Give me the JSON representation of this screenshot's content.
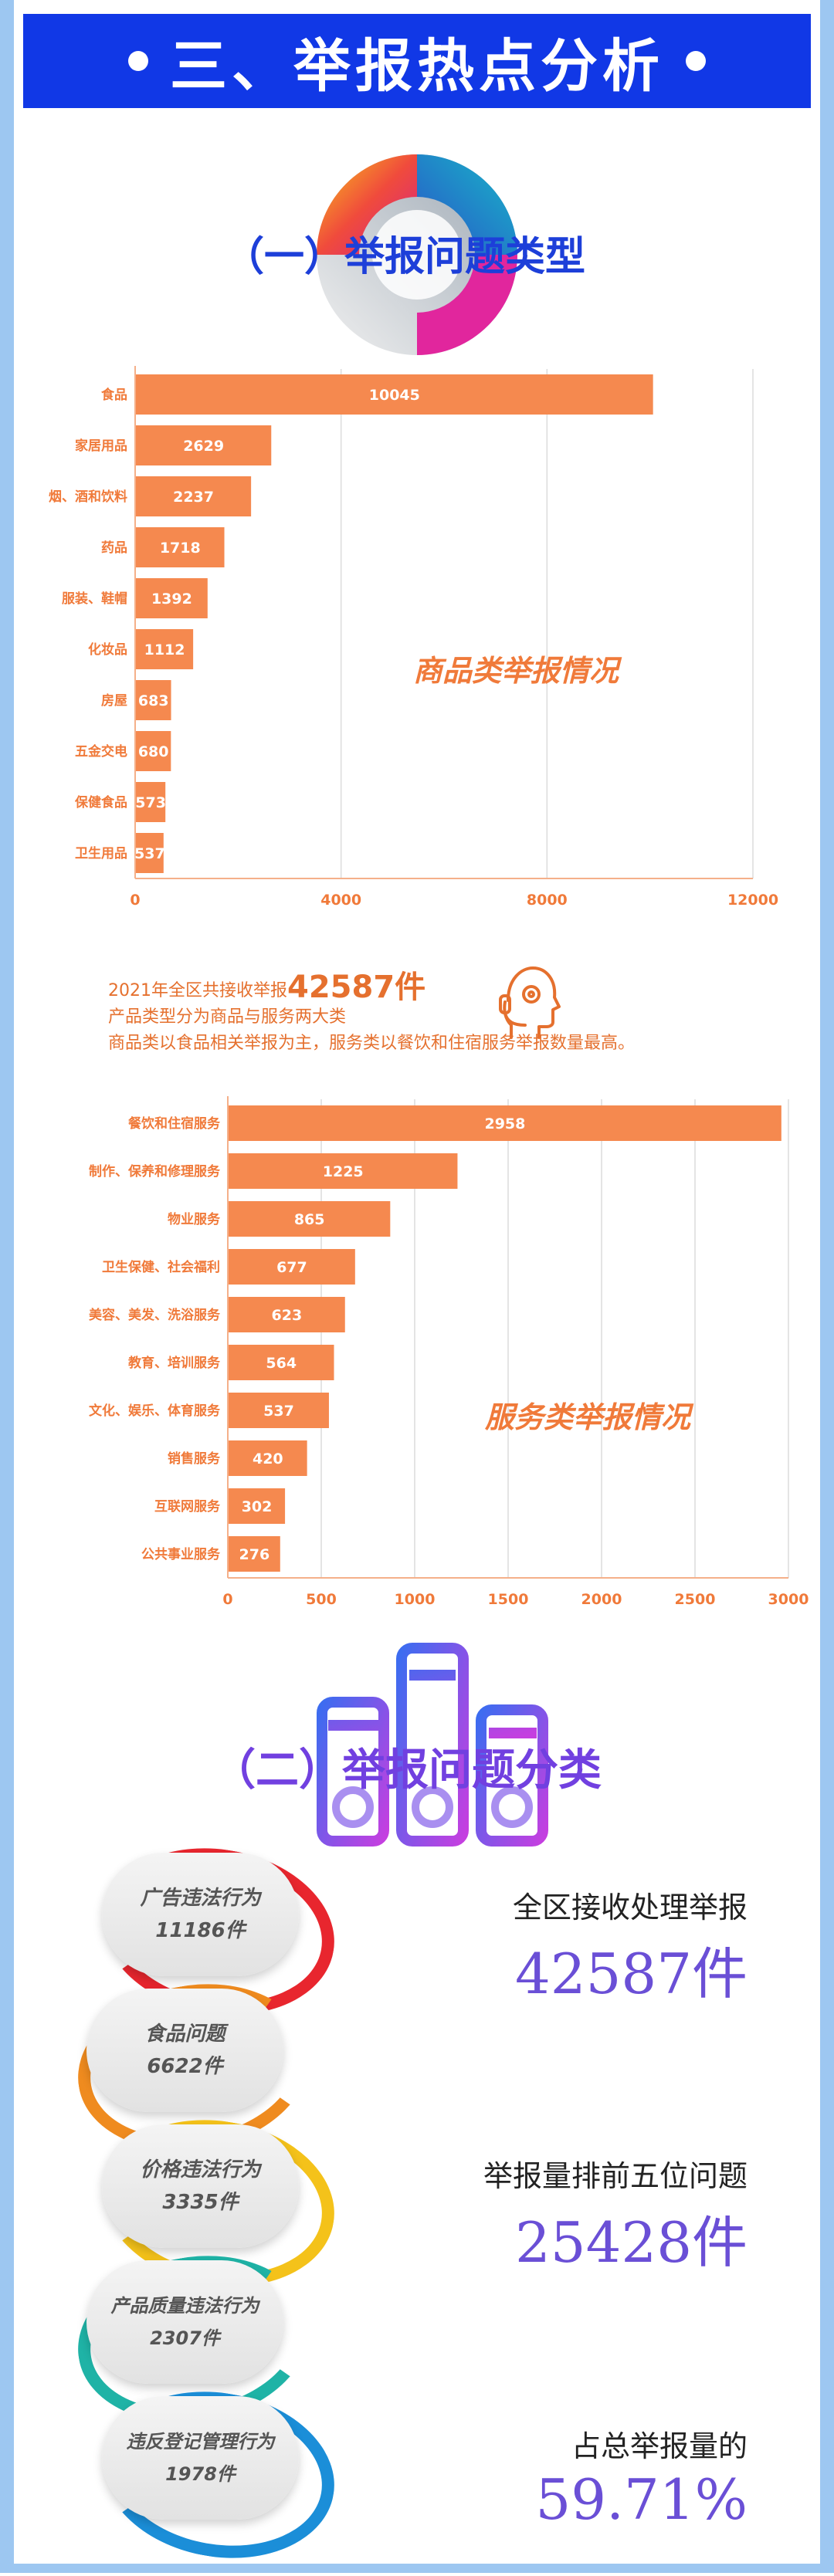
{
  "banner": {
    "title": "三、举报热点分析"
  },
  "section1": {
    "title": "（一）举报问题类型"
  },
  "chart_data": [
    {
      "type": "bar",
      "orientation": "horizontal",
      "title": "商品类举报情况",
      "categories": [
        "食品",
        "家居用品",
        "烟、酒和饮料",
        "药品",
        "服装、鞋帽",
        "化妆品",
        "房屋",
        "五金交电",
        "保健食品",
        "卫生用品"
      ],
      "values": [
        10045,
        2629,
        2237,
        1718,
        1392,
        1112,
        683,
        680,
        573,
        537
      ],
      "xlim": [
        0,
        12000
      ],
      "ticks": [
        "0",
        "4000",
        "8000",
        "12000"
      ],
      "grid": true,
      "color": "#f5894f"
    },
    {
      "type": "bar",
      "orientation": "horizontal",
      "title": "服务类举报情况",
      "categories": [
        "餐饮和住宿服务",
        "制作、保养和修理服务",
        "物业服务",
        "卫生保健、社会福利",
        "美容、美发、洗浴服务",
        "教育、培训服务",
        "文化、娱乐、体育服务",
        "销售服务",
        "互联网服务",
        "公共事业服务"
      ],
      "values": [
        2958,
        1225,
        865,
        677,
        623,
        564,
        537,
        420,
        302,
        276
      ],
      "xlim": [
        0,
        3000
      ],
      "ticks": [
        "0",
        "500",
        "1000",
        "1500",
        "2000",
        "2500",
        "3000"
      ],
      "grid": true,
      "color": "#f5894f"
    }
  ],
  "summary": {
    "line1_prefix": "2021年全区共接收举报",
    "line1_number": "42587件",
    "line2": "产品类型分为商品与服务两大类",
    "line3": "商品类以食品相关举报为主，服务类以餐饮和住宿服务举报数量最高。"
  },
  "section2": {
    "title": "（二）举报问题分类",
    "items": [
      {
        "name": "广告违法行为",
        "count": "11186件",
        "color": "#e8262e"
      },
      {
        "name": "食品问题",
        "count": "6622件",
        "color": "#ef8b1f"
      },
      {
        "name": "价格违法行为",
        "count": "3335件",
        "color": "#f4c21a"
      },
      {
        "name": "产品质量违法行为",
        "count": "2307件",
        "color": "#1fb3a6"
      },
      {
        "name": "违反登记管理行为",
        "count": "1978件",
        "color": "#1b8ed8"
      }
    ],
    "stats": [
      {
        "label": "全区接收处理举报",
        "value": "42587件"
      },
      {
        "label": "举报量排前五位问题",
        "value": "25428件"
      },
      {
        "label": "占总举报量的",
        "value": "59.71%"
      }
    ]
  }
}
